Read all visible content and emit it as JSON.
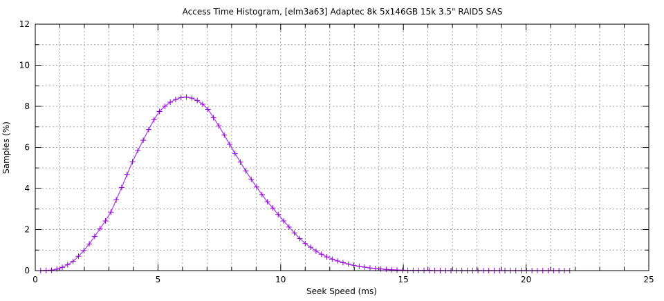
{
  "chart_data": {
    "type": "line",
    "title": "Access Time Histogram, [elm3a63] Adaptec 8k 5x146GB 15k 3.5\" RAID5 SAS",
    "xlabel": "Seek Speed (ms)",
    "ylabel": "Samples (%)",
    "xlim": [
      0,
      25
    ],
    "ylim": [
      0,
      12
    ],
    "xticks": [
      0,
      5,
      10,
      15,
      20,
      25
    ],
    "yticks": [
      0,
      2,
      4,
      6,
      8,
      10,
      12
    ],
    "grid": true,
    "marker": "plus",
    "color": "#9400d3",
    "series": [
      {
        "x": [
          0.22,
          0.44,
          0.66,
          0.88,
          1.1,
          1.32,
          1.54,
          1.76,
          1.98,
          2.2,
          2.42,
          2.64,
          2.86,
          3.08,
          3.3,
          3.52,
          3.74,
          3.96,
          4.18,
          4.4,
          4.62,
          4.84,
          5.06,
          5.28,
          5.5,
          5.72,
          5.94,
          6.16,
          6.38,
          6.6,
          6.82,
          7.04,
          7.26,
          7.48,
          7.7,
          7.92,
          8.14,
          8.36,
          8.58,
          8.8,
          9.02,
          9.24,
          9.46,
          9.68,
          9.9,
          10.12,
          10.34,
          10.56,
          10.78,
          11.0,
          11.22,
          11.44,
          11.66,
          11.88,
          12.1,
          12.32,
          12.54,
          12.76,
          12.98,
          13.2,
          13.42,
          13.64,
          13.86,
          14.08,
          14.3,
          14.52,
          14.74,
          14.96,
          15.18,
          15.4,
          15.62,
          15.84,
          16.06,
          16.28,
          16.5,
          16.72,
          16.94,
          17.16,
          17.38,
          17.6,
          17.82,
          18.04,
          18.26,
          18.48,
          18.7,
          18.92,
          19.14,
          19.36,
          19.58,
          19.8,
          20.02,
          20.24,
          20.46,
          20.68,
          20.9,
          21.12,
          21.34,
          21.56,
          21.78
        ],
        "y": [
          0,
          0.01,
          0.02,
          0.07,
          0.16,
          0.29,
          0.45,
          0.7,
          0.98,
          1.3,
          1.67,
          2.05,
          2.42,
          2.85,
          3.45,
          4.05,
          4.68,
          5.3,
          5.85,
          6.35,
          6.87,
          7.35,
          7.75,
          8.0,
          8.2,
          8.33,
          8.43,
          8.45,
          8.4,
          8.28,
          8.1,
          7.85,
          7.45,
          7.05,
          6.6,
          6.15,
          5.7,
          5.28,
          4.85,
          4.45,
          4.07,
          3.7,
          3.35,
          3.05,
          2.73,
          2.42,
          2.12,
          1.83,
          1.56,
          1.32,
          1.14,
          0.95,
          0.8,
          0.67,
          0.56,
          0.47,
          0.39,
          0.32,
          0.26,
          0.21,
          0.17,
          0.13,
          0.1,
          0.08,
          0.06,
          0.04,
          0.03,
          0.02,
          0.01,
          0.01,
          0.01,
          0.01,
          0.01,
          0,
          0,
          0,
          0,
          0,
          0,
          0,
          0,
          0,
          0,
          0,
          0,
          0,
          0,
          0,
          0,
          0,
          0,
          0,
          0,
          0,
          0,
          0,
          0,
          0,
          0
        ]
      }
    ]
  }
}
